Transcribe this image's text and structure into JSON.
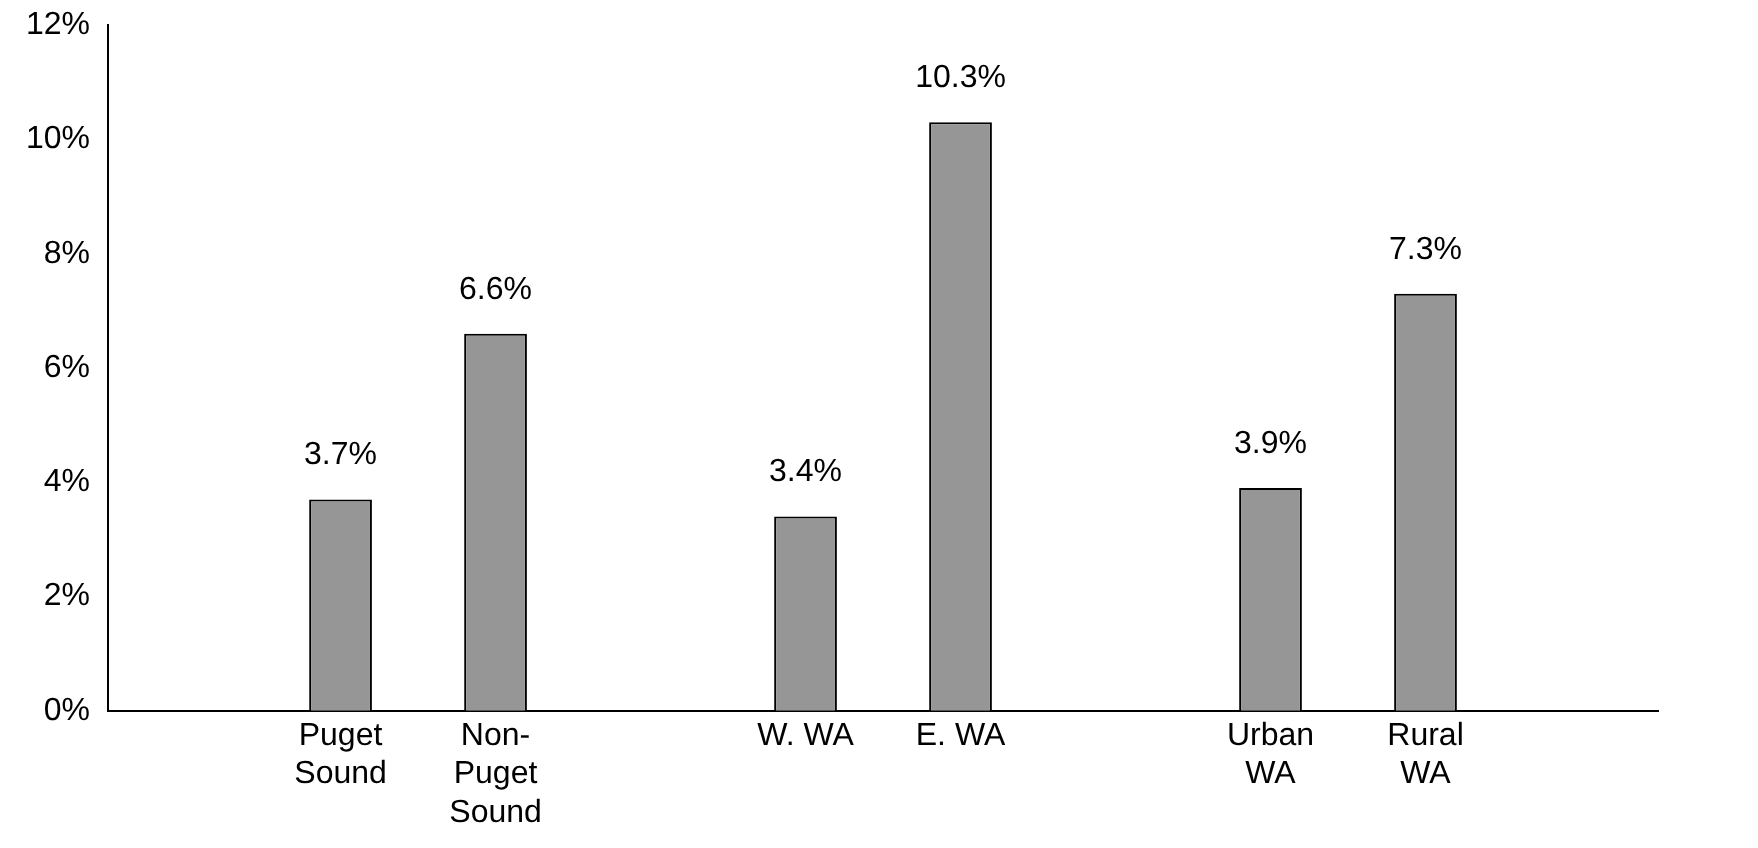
{
  "chart_data": {
    "type": "bar",
    "categories": [
      null,
      "Puget Sound",
      "Non-Puget Sound",
      null,
      "W. WA",
      "E. WA",
      null,
      "Urban WA",
      "Rural WA",
      null
    ],
    "values": [
      null,
      3.7,
      6.6,
      null,
      3.4,
      10.3,
      null,
      3.9,
      7.3,
      null
    ],
    "value_labels": [
      null,
      "3.7%",
      "6.6%",
      null,
      "3.4%",
      "10.3%",
      null,
      "3.9%",
      "7.3%",
      null
    ],
    "color": "#969696",
    "ylim": [
      0,
      12
    ],
    "yticks": [
      {
        "value": 0,
        "label": "0%"
      },
      {
        "value": 2,
        "label": "2%"
      },
      {
        "value": 4,
        "label": "4%"
      },
      {
        "value": 6,
        "label": "6%"
      },
      {
        "value": 8,
        "label": "8%"
      },
      {
        "value": 10,
        "label": "10%"
      },
      {
        "value": 12,
        "label": "12%"
      }
    ],
    "grid": false,
    "legend": false
  }
}
